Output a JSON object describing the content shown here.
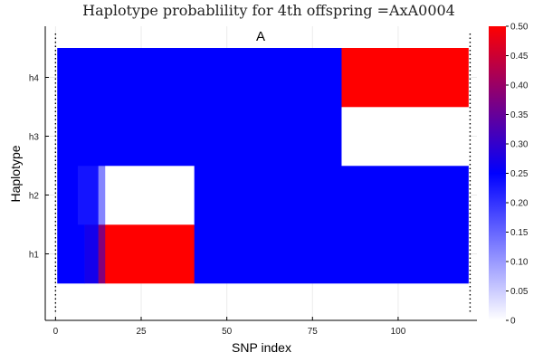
{
  "chart_data": {
    "type": "heatmap",
    "title": "Haplotype probablility for 4th offspring =AxA0004",
    "annotation": "A",
    "xlabel": "SNP index",
    "ylabel": "Haplotype",
    "xlim": [
      -3,
      123
    ],
    "xticks": [
      0,
      25,
      50,
      75,
      100
    ],
    "rows": [
      "h1",
      "h2",
      "h3",
      "h4"
    ],
    "snp_range": [
      1,
      120
    ],
    "boundary_lines_at": [
      0,
      121
    ],
    "colorbar": {
      "range": [
        0,
        0.5
      ],
      "ticks": [
        "0",
        "0.05",
        "0.10",
        "0.15",
        "0.20",
        "0.25",
        "0.30",
        "0.35",
        "0.40",
        "0.45",
        "0.50"
      ],
      "colors": [
        "#ffffff",
        "#0000ff",
        "#ff0000"
      ]
    },
    "segments": [
      {
        "row": "h1",
        "from": 1,
        "to": 8,
        "value": 0.25
      },
      {
        "row": "h1",
        "from": 9,
        "to": 12,
        "value": 0.27
      },
      {
        "row": "h1",
        "from": 13,
        "to": 14,
        "value": 0.38
      },
      {
        "row": "h1",
        "from": 15,
        "to": 40,
        "value": 0.5
      },
      {
        "row": "h1",
        "from": 41,
        "to": 120,
        "value": 0.25
      },
      {
        "row": "h2",
        "from": 1,
        "to": 6,
        "value": 0.25
      },
      {
        "row": "h2",
        "from": 7,
        "to": 12,
        "value": 0.23
      },
      {
        "row": "h2",
        "from": 13,
        "to": 14,
        "value": 0.12
      },
      {
        "row": "h2",
        "from": 15,
        "to": 40,
        "value": 0.0
      },
      {
        "row": "h2",
        "from": 41,
        "to": 120,
        "value": 0.25
      },
      {
        "row": "h3",
        "from": 1,
        "to": 83,
        "value": 0.25
      },
      {
        "row": "h3",
        "from": 84,
        "to": 120,
        "value": 0.0
      },
      {
        "row": "h4",
        "from": 1,
        "to": 83,
        "value": 0.25
      },
      {
        "row": "h4",
        "from": 84,
        "to": 120,
        "value": 0.5
      }
    ]
  }
}
